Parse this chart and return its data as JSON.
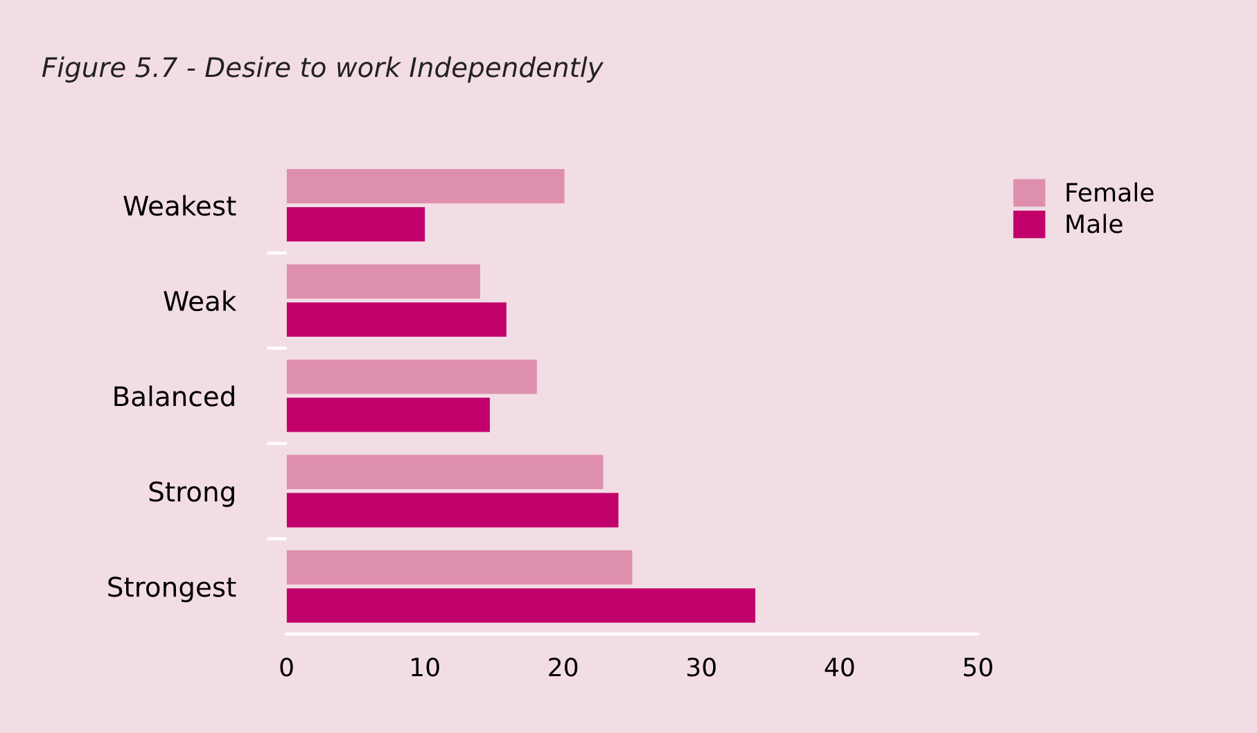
{
  "chart_data": {
    "type": "bar",
    "orientation": "horizontal",
    "title": "Figure 5.7 - Desire to work Independently",
    "categories": [
      "Weakest",
      "Weak",
      "Balanced",
      "Strong",
      "Strongest"
    ],
    "series": [
      {
        "name": "Female",
        "color": "#df8fae",
        "values": [
          20.1,
          14.0,
          18.1,
          22.9,
          25.0
        ]
      },
      {
        "name": "Male",
        "color": "#c2006b",
        "values": [
          10.0,
          15.9,
          14.7,
          24.0,
          33.9
        ]
      }
    ],
    "xlim": [
      0,
      50
    ],
    "xticks": [
      0,
      10,
      20,
      30,
      40,
      50
    ],
    "grid": false,
    "legend": "top right"
  }
}
